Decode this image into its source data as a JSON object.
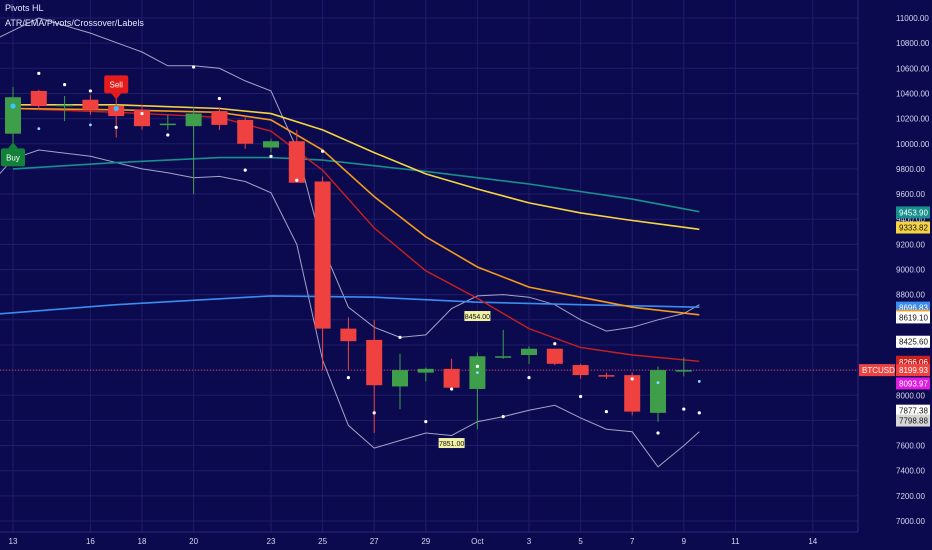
{
  "legend": {
    "line1": "Pivots HL",
    "line2": "ATR/EMA/Pivots/Crossover/Labels"
  },
  "colors": {
    "background": "#0c0a4e",
    "grid": "#1f1c6b",
    "up": "#3f9e4a",
    "down": "#ef4240",
    "ema_teal": "#178f8c",
    "ema_yellow": "#f5d442",
    "ema_orange": "#f39a1c",
    "ema_red": "#c81f1f",
    "blue_line": "#3b8cf0",
    "band": "#c9c9e6",
    "pivot_dot": "#ffffff",
    "buy": "#12813a",
    "sell": "#e51c1c"
  },
  "chart_data": {
    "type": "candlestick",
    "symbol": "BTCUSD",
    "ylim": [
      7000,
      11000
    ],
    "y_ticks": [
      7000,
      7200,
      7400,
      7600,
      7800,
      8000,
      8200,
      8400,
      8600,
      8800,
      9000,
      9200,
      9400,
      9600,
      9800,
      10000,
      10200,
      10400,
      10600,
      10800,
      11000
    ],
    "x_ticks": [
      {
        "i": 0,
        "label": "13"
      },
      {
        "i": 3,
        "label": "16"
      },
      {
        "i": 5,
        "label": "18"
      },
      {
        "i": 7,
        "label": "20"
      },
      {
        "i": 10,
        "label": "23"
      },
      {
        "i": 12,
        "label": "25"
      },
      {
        "i": 14,
        "label": "27"
      },
      {
        "i": 16,
        "label": "29"
      },
      {
        "i": 18,
        "label": "Oct"
      },
      {
        "i": 20,
        "label": "3"
      },
      {
        "i": 22,
        "label": "5"
      },
      {
        "i": 24,
        "label": "7"
      },
      {
        "i": 26,
        "label": "9"
      },
      {
        "i": 28,
        "label": "11"
      },
      {
        "i": 31,
        "label": "14"
      }
    ],
    "candles": [
      {
        "o": 10080,
        "h": 10450,
        "l": 9950,
        "c": 10370
      },
      {
        "o": 10420,
        "h": 10430,
        "l": 10270,
        "c": 10300
      },
      {
        "o": 10300,
        "h": 10380,
        "l": 10180,
        "c": 10310
      },
      {
        "o": 10350,
        "h": 10390,
        "l": 10230,
        "c": 10270
      },
      {
        "o": 10300,
        "h": 10360,
        "l": 10050,
        "c": 10220
      },
      {
        "o": 10270,
        "h": 10310,
        "l": 10110,
        "c": 10140
      },
      {
        "o": 10160,
        "h": 10230,
        "l": 10110,
        "c": 10160
      },
      {
        "o": 10140,
        "h": 10290,
        "l": 9600,
        "c": 10240
      },
      {
        "o": 10260,
        "h": 10290,
        "l": 10110,
        "c": 10150
      },
      {
        "o": 10190,
        "h": 10220,
        "l": 9960,
        "c": 10000
      },
      {
        "o": 9970,
        "h": 10040,
        "l": 9930,
        "c": 10020
      },
      {
        "o": 10020,
        "h": 10110,
        "l": 9710,
        "c": 9690
      },
      {
        "o": 9700,
        "h": 9740,
        "l": 8200,
        "c": 8530
      },
      {
        "o": 8530,
        "h": 8620,
        "l": 8200,
        "c": 8430
      },
      {
        "o": 8440,
        "h": 8600,
        "l": 7700,
        "c": 8080
      },
      {
        "o": 8070,
        "h": 8330,
        "l": 7890,
        "c": 8200
      },
      {
        "o": 8180,
        "h": 8220,
        "l": 8110,
        "c": 8210
      },
      {
        "o": 8210,
        "h": 8290,
        "l": 8050,
        "c": 8060
      },
      {
        "o": 8050,
        "h": 8340,
        "l": 7730,
        "c": 8310
      },
      {
        "o": 8300,
        "h": 8520,
        "l": 8290,
        "c": 8310
      },
      {
        "o": 8320,
        "h": 8390,
        "l": 8250,
        "c": 8370
      },
      {
        "o": 8370,
        "h": 8370,
        "l": 8240,
        "c": 8250
      },
      {
        "o": 8240,
        "h": 8250,
        "l": 8130,
        "c": 8160
      },
      {
        "o": 8160,
        "h": 8180,
        "l": 8130,
        "c": 8150
      },
      {
        "o": 8160,
        "h": 8180,
        "l": 7840,
        "c": 7870
      },
      {
        "o": 7860,
        "h": 8230,
        "l": 7790,
        "c": 8200
      },
      {
        "o": 8200,
        "h": 8300,
        "l": 8150,
        "c": 8200
      }
    ],
    "ema_teal": [
      [
        0,
        9800
      ],
      [
        4,
        9850
      ],
      [
        8,
        9890
      ],
      [
        10,
        9890
      ],
      [
        12,
        9870
      ],
      [
        16,
        9780
      ],
      [
        20,
        9680
      ],
      [
        24,
        9560
      ],
      [
        26.6,
        9460
      ]
    ],
    "ema_yellow": [
      [
        0,
        10310
      ],
      [
        4,
        10310
      ],
      [
        8,
        10280
      ],
      [
        10,
        10240
      ],
      [
        12,
        10110
      ],
      [
        14,
        9930
      ],
      [
        16,
        9760
      ],
      [
        18,
        9640
      ],
      [
        20,
        9530
      ],
      [
        22,
        9450
      ],
      [
        24,
        9390
      ],
      [
        26.6,
        9320
      ]
    ],
    "ema_orange": [
      [
        0,
        10280
      ],
      [
        4,
        10270
      ],
      [
        8,
        10250
      ],
      [
        10,
        10190
      ],
      [
        12,
        9950
      ],
      [
        14,
        9580
      ],
      [
        16,
        9260
      ],
      [
        18,
        9020
      ],
      [
        20,
        8860
      ],
      [
        22,
        8780
      ],
      [
        24,
        8700
      ],
      [
        26.6,
        8640
      ]
    ],
    "ema_red": [
      [
        0,
        10280
      ],
      [
        4,
        10250
      ],
      [
        8,
        10210
      ],
      [
        10,
        10100
      ],
      [
        12,
        9790
      ],
      [
        14,
        9330
      ],
      [
        16,
        8990
      ],
      [
        18,
        8770
      ],
      [
        20,
        8530
      ],
      [
        22,
        8380
      ],
      [
        24,
        8320
      ],
      [
        26.6,
        8270
      ]
    ],
    "blue_line": [
      [
        -1,
        8640
      ],
      [
        4,
        8720
      ],
      [
        10,
        8790
      ],
      [
        14,
        8780
      ],
      [
        18,
        8740
      ],
      [
        22,
        8720
      ],
      [
        26.6,
        8700
      ]
    ],
    "band_upper": [
      [
        -1,
        10800
      ],
      [
        0,
        10900
      ],
      [
        1,
        11000
      ],
      [
        3,
        10880
      ],
      [
        5,
        10730
      ],
      [
        6,
        10620
      ],
      [
        7,
        10620
      ],
      [
        8,
        10600
      ],
      [
        9,
        10500
      ],
      [
        10,
        10420
      ],
      [
        11,
        9960
      ],
      [
        12,
        9180
      ],
      [
        13,
        8700
      ],
      [
        14,
        8540
      ],
      [
        15,
        8460
      ],
      [
        16,
        8480
      ],
      [
        17,
        8690
      ],
      [
        18,
        8790
      ],
      [
        19,
        8800
      ],
      [
        20,
        8780
      ],
      [
        21,
        8720
      ],
      [
        22,
        8600
      ],
      [
        23,
        8510
      ],
      [
        24,
        8540
      ],
      [
        25,
        8600
      ],
      [
        26,
        8650
      ],
      [
        26.6,
        8720
      ]
    ],
    "band_lower": [
      [
        -1,
        9650
      ],
      [
        0,
        9880
      ],
      [
        1,
        9950
      ],
      [
        3,
        9900
      ],
      [
        5,
        9800
      ],
      [
        6,
        9770
      ],
      [
        7,
        9730
      ],
      [
        8,
        9740
      ],
      [
        9,
        9700
      ],
      [
        10,
        9610
      ],
      [
        11,
        9200
      ],
      [
        12,
        8280
      ],
      [
        13,
        7760
      ],
      [
        14,
        7580
      ],
      [
        15,
        7640
      ],
      [
        16,
        7700
      ],
      [
        17,
        7680
      ],
      [
        18,
        7790
      ],
      [
        19,
        7830
      ],
      [
        20,
        7880
      ],
      [
        21,
        7920
      ],
      [
        22,
        7820
      ],
      [
        23,
        7730
      ],
      [
        24,
        7710
      ],
      [
        25,
        7430
      ],
      [
        26,
        7600
      ],
      [
        26.6,
        7710
      ]
    ],
    "pivot_dots": [
      [
        0,
        9940
      ],
      [
        1,
        10560
      ],
      [
        2,
        10470
      ],
      [
        3,
        10420
      ],
      [
        4,
        10130
      ],
      [
        5,
        10240
      ],
      [
        6,
        10070
      ],
      [
        7,
        10610
      ],
      [
        8,
        10360
      ],
      [
        9,
        9790
      ],
      [
        10,
        9900
      ],
      [
        11,
        9710
      ],
      [
        12,
        9940
      ],
      [
        13,
        8140
      ],
      [
        14,
        7860
      ],
      [
        15,
        8460
      ],
      [
        16,
        7790
      ],
      [
        17,
        8050
      ],
      [
        18,
        8230
      ],
      [
        19,
        7830
      ],
      [
        20,
        8140
      ],
      [
        21,
        8410
      ],
      [
        22,
        7990
      ],
      [
        23,
        7870
      ],
      [
        24,
        8130
      ],
      [
        25,
        7700
      ],
      [
        26,
        7890
      ],
      [
        26.6,
        7860
      ]
    ],
    "small_markers": [
      [
        18,
        8180
      ],
      [
        25,
        8100
      ],
      [
        26.6,
        8110
      ],
      [
        1,
        10120
      ],
      [
        3,
        10150
      ]
    ],
    "signals": [
      {
        "type": "buy",
        "i": 0,
        "y": 9900,
        "label": "Buy"
      },
      {
        "type": "sell",
        "i": 4,
        "y": 10480,
        "label": "Sell"
      }
    ],
    "pivot_labels": [
      {
        "i": 18,
        "y": 8630,
        "label": "8454.00"
      },
      {
        "i": 17,
        "y": 7620,
        "label": "7851.00"
      }
    ],
    "price_tags": [
      {
        "value": 9453.9,
        "label": "9453.90",
        "bg": "#178f8c",
        "fg": "#ffffff"
      },
      {
        "value": 9333.82,
        "label": "9333.82",
        "bg": "#f5d442",
        "fg": "#111111"
      },
      {
        "value": 8696.83,
        "label": "8696.83",
        "bg": "#3b8cf0",
        "fg": "#ffffff"
      },
      {
        "value": 8633.08,
        "label": "8633.08",
        "bg": "#f39a1c",
        "fg": "#111111"
      },
      {
        "value": 8619.1,
        "label": "8619.10",
        "bg": "#ffffff",
        "fg": "#111111"
      },
      {
        "value": 8425.6,
        "label": "8425.60",
        "bg": "#ffffff",
        "fg": "#111111"
      },
      {
        "value": 8266.06,
        "label": "8266.06",
        "bg": "#c81f1f",
        "fg": "#ffffff"
      },
      {
        "value": 8199.93,
        "label": "8199.93",
        "bg": "#ef4240",
        "fg": "#ffffff"
      },
      {
        "value": 8093.97,
        "label": "8093.97",
        "bg": "#e01be0",
        "fg": "#ffffff"
      },
      {
        "value": 7877.38,
        "label": "7877.38",
        "bg": "#ffffff",
        "fg": "#111111"
      },
      {
        "value": 7798.88,
        "label": "7798.88",
        "bg": "#d6d6d6",
        "fg": "#111111"
      }
    ],
    "symbol_tag": {
      "value": 8199.93,
      "label": "BTCUSD",
      "bg": "#ef4240",
      "fg": "#ffffff"
    },
    "last_price": 8199.93
  }
}
